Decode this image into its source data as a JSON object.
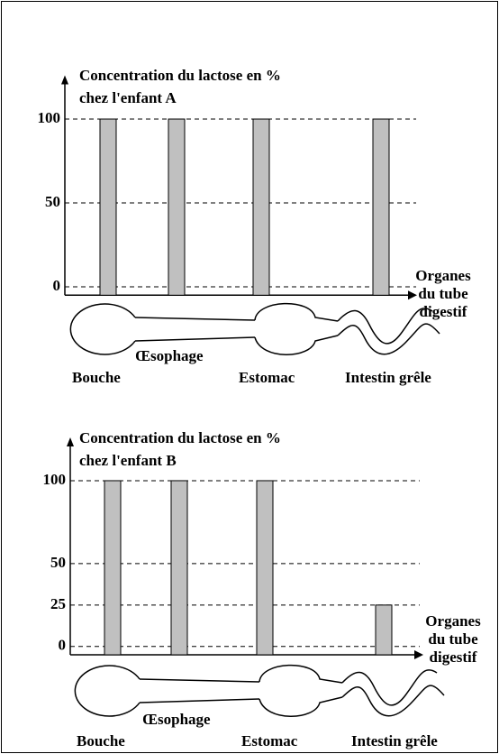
{
  "chart_data": [
    {
      "type": "bar",
      "title": "Concentration du lactose en %",
      "subtitle": "chez l'enfant A",
      "categories": [
        null,
        null,
        null,
        null
      ],
      "values": [
        100,
        100,
        100,
        100
      ],
      "color": "#c0c0c0",
      "ylim": [
        -5,
        125
      ],
      "yticks": [
        0,
        50,
        100
      ],
      "grid": true,
      "xlabel": [
        "Organes",
        "du tube",
        "digestif"
      ],
      "organ_labels": [
        "Bouche",
        "Œsophage",
        "Estomac",
        "Intestin grêle"
      ]
    },
    {
      "type": "bar",
      "title": "Concentration du lactose en %",
      "subtitle": "chez l'enfant B",
      "categories": [
        null,
        null,
        null,
        null
      ],
      "values": [
        100,
        100,
        100,
        25
      ],
      "color": "#c0c0c0",
      "ylim": [
        -5,
        125
      ],
      "yticks": [
        0,
        25,
        50,
        100
      ],
      "grid": true,
      "xlabel": [
        "Organes",
        "du tube",
        "digestif"
      ],
      "organ_labels": [
        "Bouche",
        "Œsophage",
        "Estomac",
        "Intestin grêle"
      ]
    }
  ]
}
